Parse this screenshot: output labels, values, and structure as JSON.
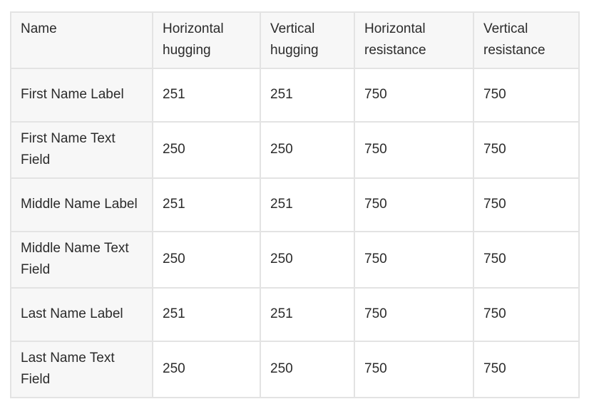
{
  "table": {
    "headers": [
      "Name",
      "Horizontal hugging",
      "Vertical hugging",
      "Horizontal resistance",
      "Vertical resistance"
    ],
    "rows": [
      [
        "First Name Label",
        "251",
        "251",
        "750",
        "750"
      ],
      [
        "First Name Text Field",
        "250",
        "250",
        "750",
        "750"
      ],
      [
        "Middle Name Label",
        "251",
        "251",
        "750",
        "750"
      ],
      [
        "Middle Name Text Field",
        "250",
        "250",
        "750",
        "750"
      ],
      [
        "Last Name Label",
        "251",
        "251",
        "750",
        "750"
      ],
      [
        "Last Name Text Field",
        "250",
        "250",
        "750",
        "750"
      ]
    ]
  },
  "colors": {
    "border": "#e3e3e3",
    "header_background": "#f7f7f7",
    "text": "#2b2b2b"
  }
}
